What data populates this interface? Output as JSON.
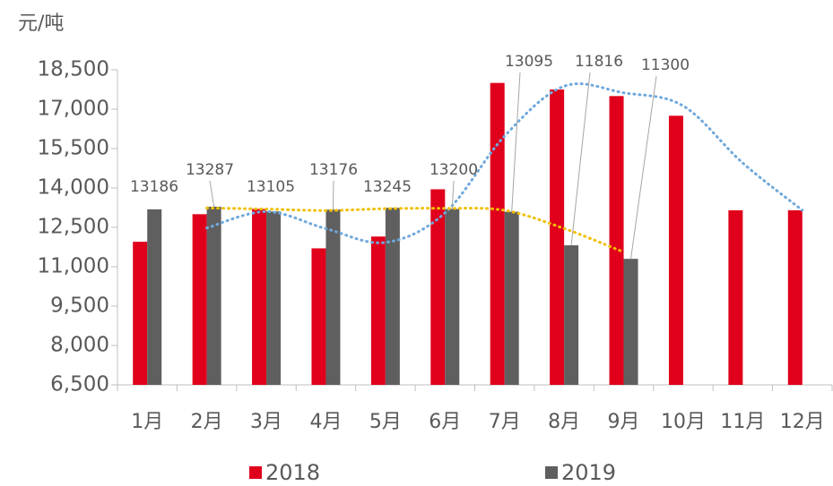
{
  "chart_data": {
    "type": "bar",
    "y_label": "元/吨",
    "categories": [
      "1月",
      "2月",
      "3月",
      "4月",
      "5月",
      "6月",
      "7月",
      "8月",
      "9月",
      "10月",
      "11月",
      "12月"
    ],
    "series": [
      {
        "name": "2018",
        "color": "#e0001b",
        "values": [
          11950,
          13000,
          13200,
          11700,
          12150,
          13950,
          18000,
          17750,
          17500,
          16750,
          13150,
          13150
        ],
        "trend_color": "#6fa8dc"
      },
      {
        "name": "2019",
        "color": "#5f5f5f",
        "values": [
          13186,
          13287,
          13105,
          13176,
          13245,
          13200,
          13095,
          11816,
          11300,
          null,
          null,
          null
        ],
        "trend_color": "#f0c000",
        "data_labels": true
      }
    ],
    "trendline": {
      "type": "moving_average",
      "period": 2
    },
    "ylim": [
      6500,
      18500
    ],
    "yticks": [
      {
        "value": 6500,
        "label": "6,500"
      },
      {
        "value": 8000,
        "label": "8,000"
      },
      {
        "value": 9500,
        "label": "9,500"
      },
      {
        "value": 11000,
        "label": "11,000"
      },
      {
        "value": 12500,
        "label": "12,500"
      },
      {
        "value": 14000,
        "label": "14,000"
      },
      {
        "value": 15500,
        "label": "15,500"
      },
      {
        "value": 17000,
        "label": "17,000"
      },
      {
        "value": 18500,
        "label": "18,500"
      }
    ],
    "legend": "bottom"
  }
}
